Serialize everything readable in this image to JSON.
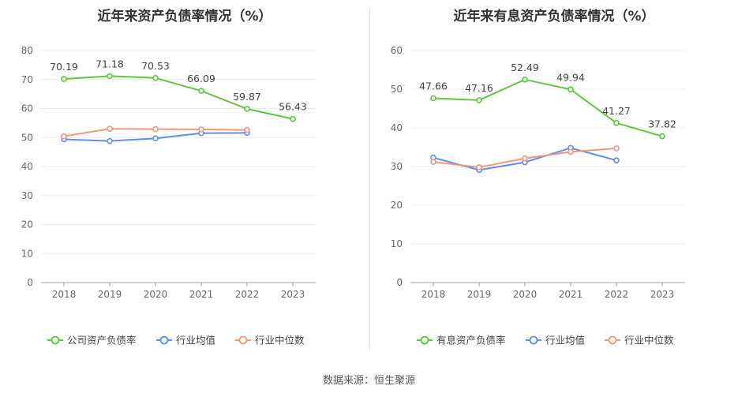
{
  "source": "数据来源：恒生聚源",
  "colors": {
    "company": "#5ac93b",
    "avg": "#5b8ff0",
    "median": "#f1977a"
  },
  "chart_data": [
    {
      "type": "line",
      "title": "近年来资产负债率情况（%）",
      "categories": [
        "2018",
        "2019",
        "2020",
        "2021",
        "2022",
        "2023"
      ],
      "ylim": [
        0,
        80
      ],
      "yticks": [
        0,
        10,
        20,
        30,
        40,
        50,
        60,
        70,
        80
      ],
      "grid": true,
      "legend_position": "bottom",
      "series": [
        {
          "name": "公司资产负债率",
          "color": "#5ac93b",
          "labeled": true,
          "values": [
            70.19,
            71.18,
            70.53,
            66.09,
            59.87,
            56.43
          ]
        },
        {
          "name": "行业均值",
          "color": "#5b8ff0",
          "labeled": false,
          "values": [
            49.4,
            48.8,
            49.7,
            51.5,
            51.6,
            null
          ]
        },
        {
          "name": "行业中位数",
          "color": "#f1977a",
          "labeled": false,
          "values": [
            50.4,
            53.0,
            52.9,
            52.8,
            52.6,
            null
          ]
        }
      ]
    },
    {
      "type": "line",
      "title": "近年来有息资产负债率情况（%）",
      "categories": [
        "2018",
        "2019",
        "2020",
        "2021",
        "2022",
        "2023"
      ],
      "ylim": [
        0,
        60
      ],
      "yticks": [
        0,
        10,
        20,
        30,
        40,
        50,
        60
      ],
      "grid": true,
      "legend_position": "bottom",
      "series": [
        {
          "name": "有息资产负债率",
          "color": "#5ac93b",
          "labeled": true,
          "values": [
            47.66,
            47.16,
            52.49,
            49.94,
            41.27,
            37.82
          ]
        },
        {
          "name": "行业均值",
          "color": "#5b8ff0",
          "labeled": false,
          "values": [
            32.3,
            29.1,
            31.1,
            34.8,
            31.6,
            null
          ]
        },
        {
          "name": "行业中位数",
          "color": "#f1977a",
          "labeled": false,
          "values": [
            31.2,
            29.8,
            32.1,
            33.8,
            34.7,
            null
          ]
        }
      ]
    }
  ]
}
